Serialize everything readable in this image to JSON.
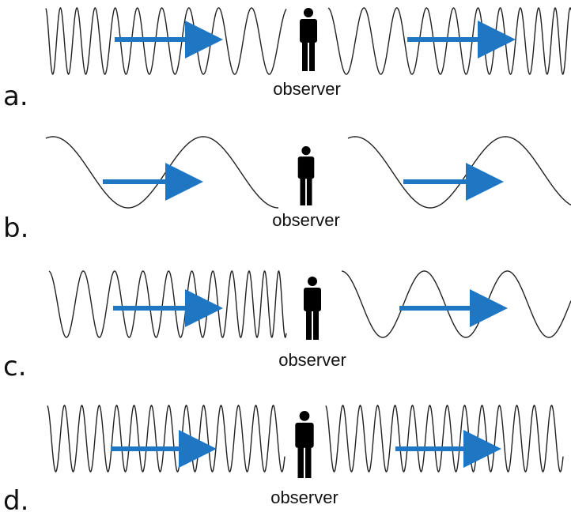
{
  "panels": [
    {
      "label": "a.",
      "observer": "observer"
    },
    {
      "label": "b.",
      "observer": "observer"
    },
    {
      "label": "c.",
      "observer": "observer"
    },
    {
      "label": "d.",
      "observer": "observer"
    }
  ]
}
